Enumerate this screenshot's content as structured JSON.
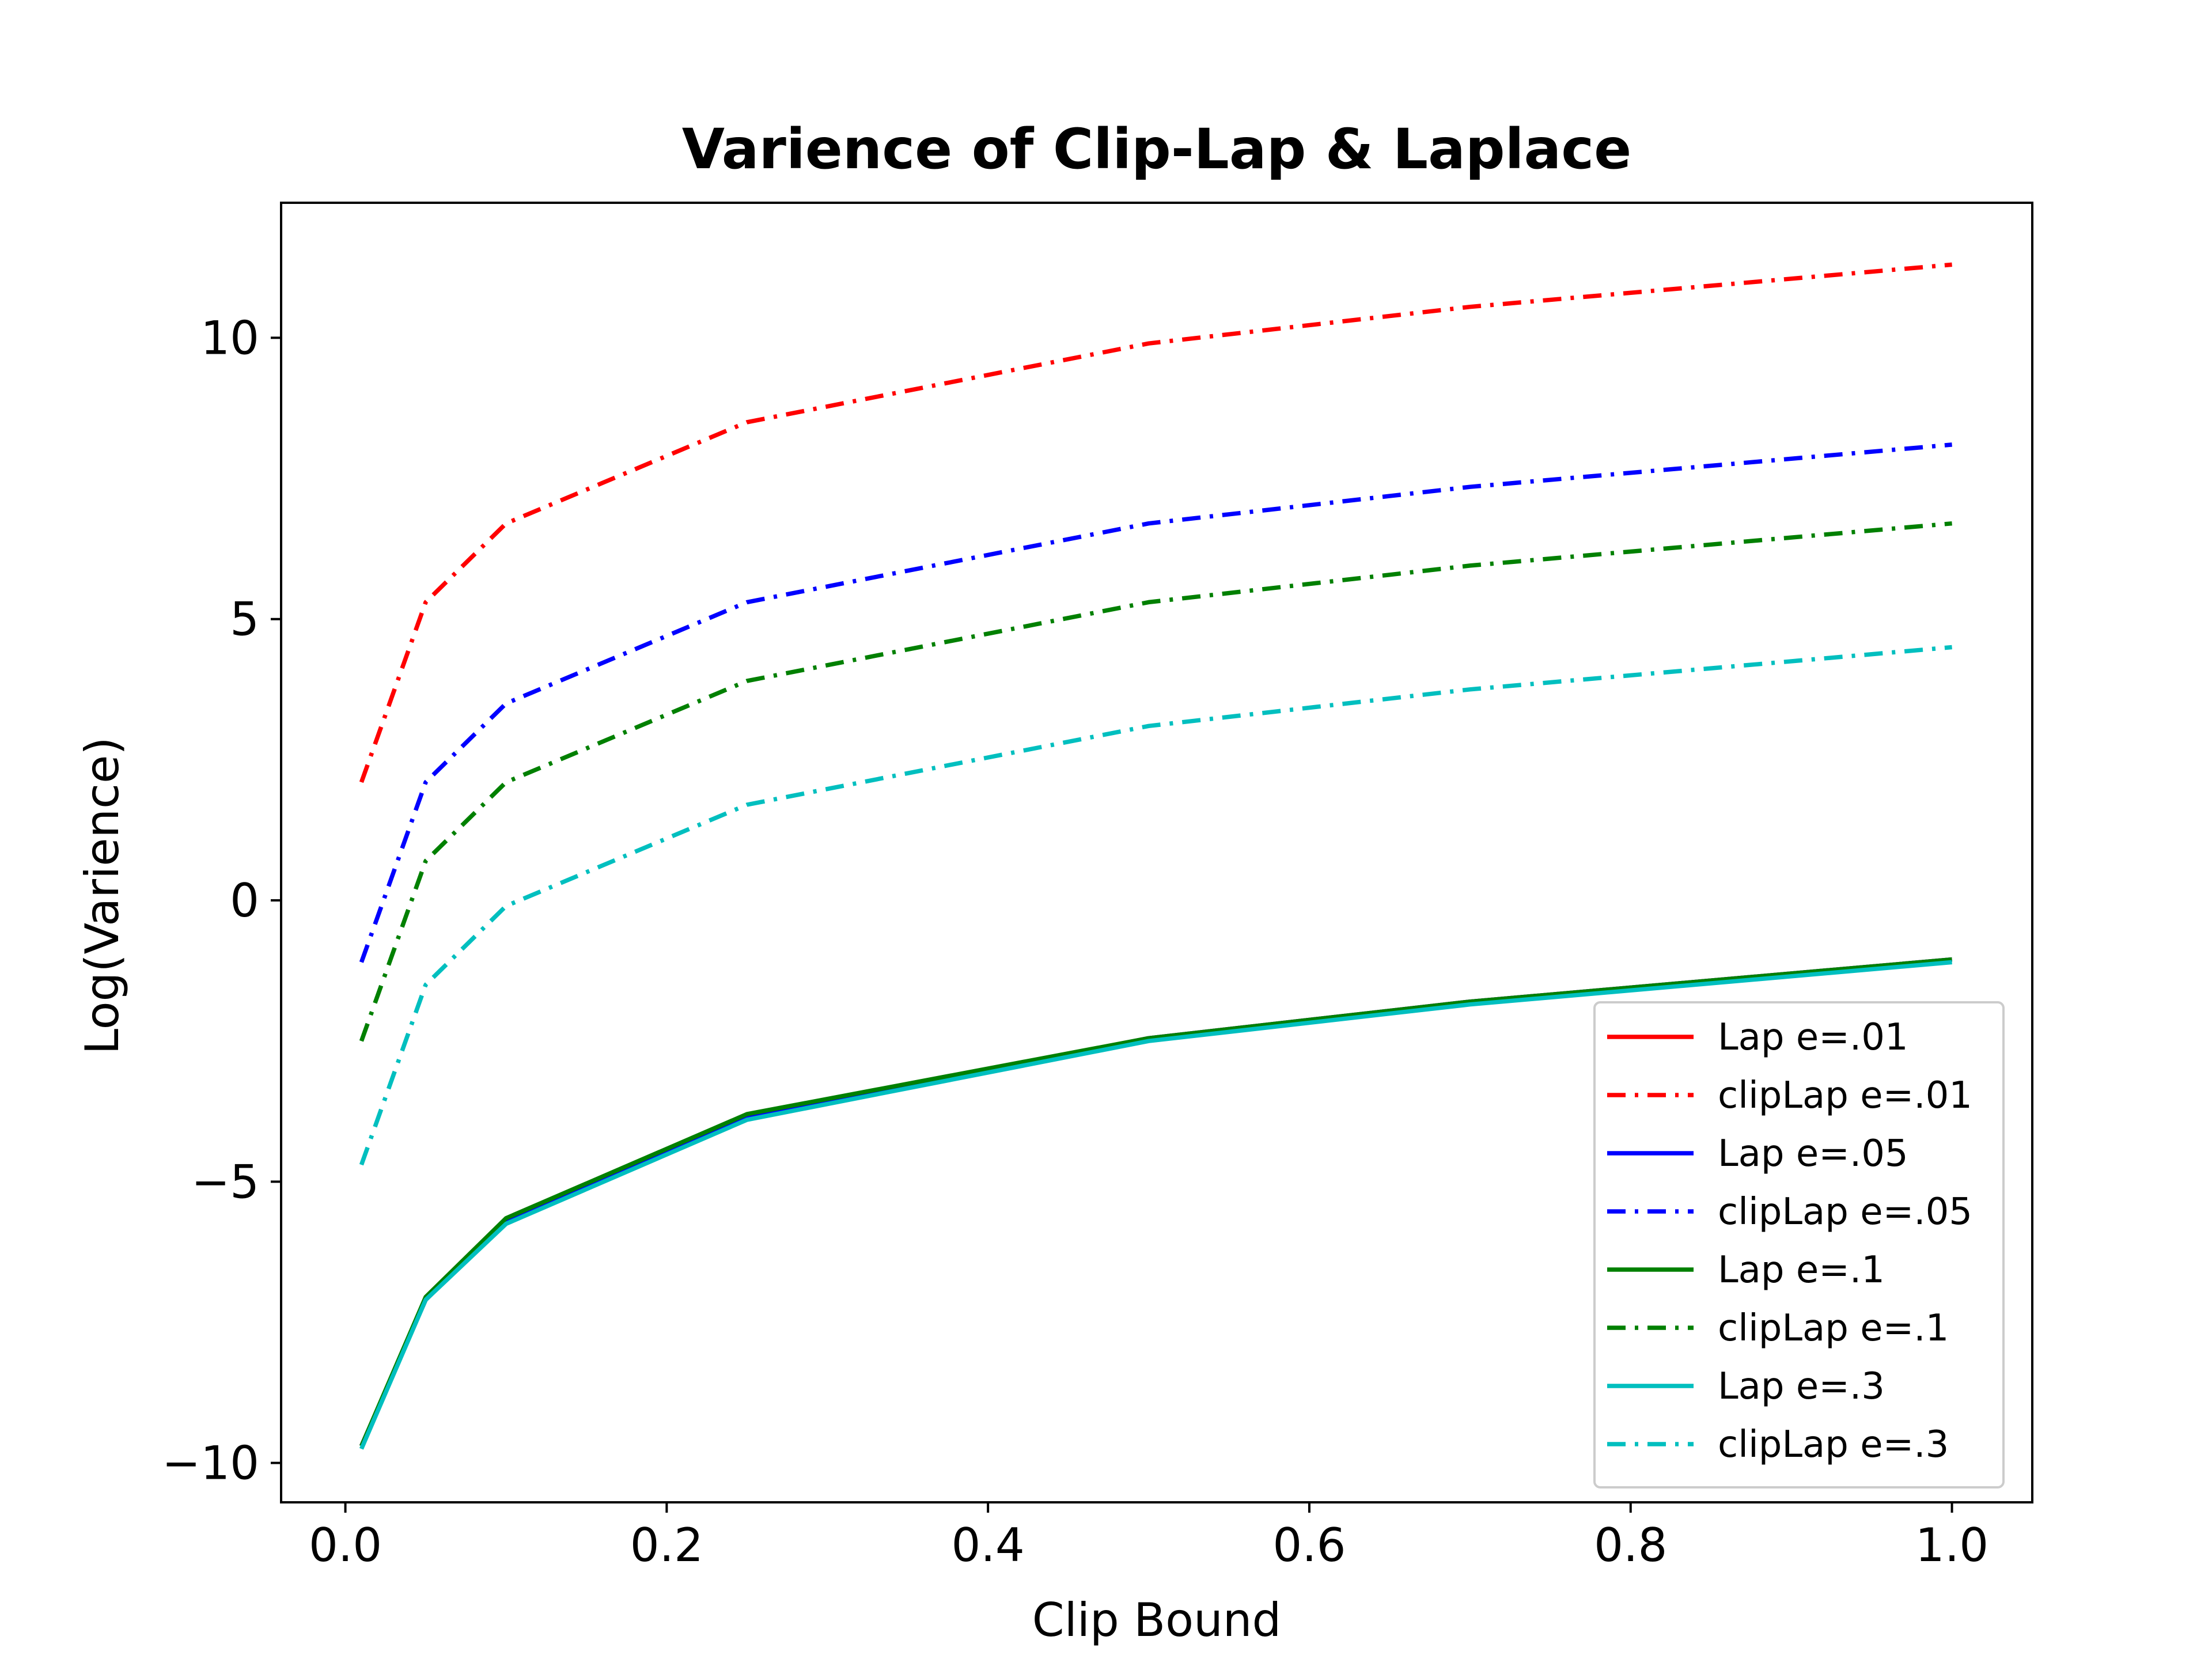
{
  "chart_data": {
    "type": "line",
    "title": "Varience of Clip-Lap & Laplace",
    "xlabel": "Clip Bound",
    "ylabel": "Log(Varience)",
    "xlim": [
      -0.04,
      1.05
    ],
    "ylim": [
      -10.7,
      12.4
    ],
    "x_ticks": [
      0.0,
      0.2,
      0.4,
      0.6,
      0.8,
      1.0
    ],
    "x_tick_labels": [
      "0.0",
      "0.2",
      "0.4",
      "0.6",
      "0.8",
      "1.0"
    ],
    "y_ticks": [
      -10,
      -5,
      0,
      5,
      10
    ],
    "y_tick_labels": [
      "−10",
      "−5",
      "0",
      "5",
      "10"
    ],
    "grid": false,
    "legend_position": "lower-right",
    "x": [
      0.01,
      0.05,
      0.1,
      0.25,
      0.5,
      0.7,
      1.0
    ],
    "series": [
      {
        "name": "Lap e=.01",
        "color": "#ff0000",
        "dash": "solid",
        "values": [
          -9.7,
          -7.1,
          -5.7,
          -3.85,
          -2.45,
          -1.8,
          -1.05
        ]
      },
      {
        "name": "clipLap e=.01",
        "color": "#ff0000",
        "dash": "dashdot",
        "values": [
          2.1,
          5.3,
          6.7,
          8.5,
          9.9,
          10.55,
          11.3
        ]
      },
      {
        "name": "Lap e=.05",
        "color": "#0000ff",
        "dash": "solid",
        "values": [
          -9.7,
          -7.1,
          -5.7,
          -3.85,
          -2.45,
          -1.8,
          -1.05
        ]
      },
      {
        "name": "clipLap e=.05",
        "color": "#0000ff",
        "dash": "dashdot",
        "values": [
          -1.1,
          2.1,
          3.5,
          5.3,
          6.7,
          7.35,
          8.1
        ]
      },
      {
        "name": "Lap e=.1",
        "color": "#008000",
        "dash": "solid",
        "values": [
          -9.7,
          -7.05,
          -5.65,
          -3.8,
          -2.45,
          -1.8,
          -1.05
        ]
      },
      {
        "name": "clipLap e=.1",
        "color": "#008000",
        "dash": "dashdot",
        "values": [
          -2.5,
          0.7,
          2.1,
          3.9,
          5.3,
          5.95,
          6.7
        ]
      },
      {
        "name": "Lap e=.3",
        "color": "#00bfbf",
        "dash": "solid",
        "values": [
          -9.75,
          -7.1,
          -5.75,
          -3.9,
          -2.5,
          -1.85,
          -1.1
        ]
      },
      {
        "name": "clipLap e=.3",
        "color": "#00bfbf",
        "dash": "dashdot",
        "values": [
          -4.7,
          -1.5,
          -0.1,
          1.7,
          3.1,
          3.75,
          4.5
        ]
      }
    ]
  }
}
